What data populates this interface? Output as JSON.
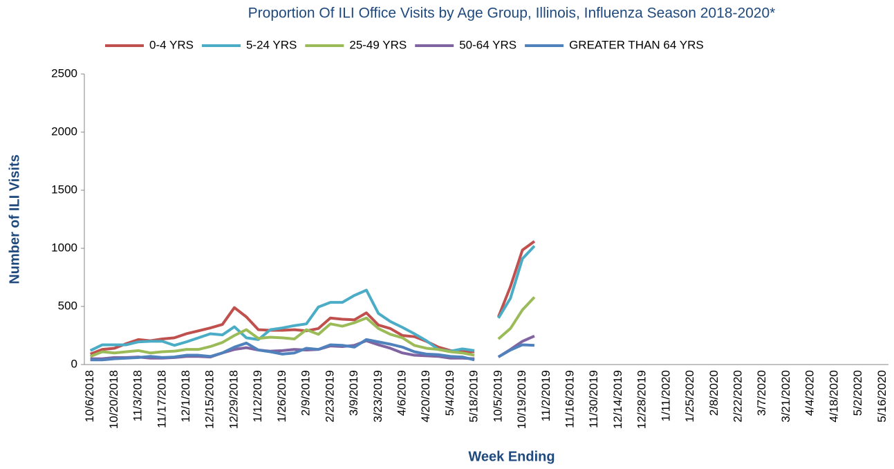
{
  "chart_data": {
    "type": "line",
    "title": "Proportion Of ILI Office Visits by Age Group, Illinois, Influenza Season 2018-2020*",
    "x_label": "Week Ending",
    "y_label": "Number of ILI Visits",
    "categories": [
      "10/6/2018",
      null,
      "10/20/2018",
      null,
      "11/3/2018",
      null,
      "11/17/2018",
      null,
      "12/1/2018",
      null,
      "12/15/2018",
      null,
      "12/29/2018",
      null,
      "1/12/2019",
      null,
      "1/26/2019",
      null,
      "2/9/2019",
      null,
      "2/23/2019",
      null,
      "3/9/2019",
      null,
      "3/23/2019",
      null,
      "4/6/2019",
      null,
      "4/20/2019",
      null,
      "5/4/2019",
      null,
      "5/18/2019",
      null,
      "10/5/2019",
      null,
      "10/19/2019",
      null,
      "11/2/2019",
      null,
      "11/16/2019",
      null,
      "11/30/2019",
      null,
      "12/14/2019",
      null,
      "12/28/2019",
      null,
      "1/11/2020",
      null,
      "1/25/2020",
      null,
      "2/8/2020",
      null,
      "2/22/2020",
      null,
      "3/7/2020",
      null,
      "3/21/2020",
      null,
      "4/4/2020",
      null,
      "4/18/2020",
      null,
      "5/2/2020",
      null,
      "5/16/2020"
    ],
    "series": [
      {
        "name": "0-4 YRS",
        "color": "#c0504d",
        "values": [
          90,
          130,
          140,
          180,
          215,
          205,
          220,
          230,
          265,
          290,
          315,
          345,
          490,
          410,
          300,
          295,
          295,
          300,
          290,
          310,
          400,
          390,
          385,
          445,
          340,
          310,
          250,
          240,
          200,
          150,
          120,
          110,
          110,
          null,
          410,
          670,
          985,
          1060,
          null,
          null,
          null,
          null,
          null,
          null,
          null,
          null,
          null,
          null,
          null,
          null,
          null,
          null,
          null,
          null,
          null,
          null,
          null,
          null,
          null,
          null,
          null,
          null,
          null,
          null,
          null,
          null,
          null
        ]
      },
      {
        "name": "5-24 YRS",
        "color": "#4bacc6",
        "values": [
          120,
          170,
          170,
          170,
          195,
          200,
          200,
          165,
          195,
          230,
          265,
          255,
          325,
          230,
          215,
          300,
          315,
          335,
          350,
          495,
          535,
          535,
          595,
          640,
          440,
          370,
          320,
          265,
          205,
          130,
          115,
          135,
          120,
          null,
          400,
          570,
          910,
          1020,
          null,
          null,
          null,
          null,
          null,
          null,
          null,
          null,
          null,
          null,
          null,
          null,
          null,
          null,
          null,
          null,
          null,
          null,
          null,
          null,
          null,
          null,
          null,
          null,
          null,
          null,
          null,
          null,
          null
        ]
      },
      {
        "name": "25-49 YRS",
        "color": "#9bbb59",
        "values": [
          70,
          110,
          100,
          110,
          120,
          100,
          110,
          115,
          130,
          130,
          155,
          190,
          250,
          300,
          225,
          235,
          230,
          220,
          300,
          260,
          350,
          330,
          360,
          400,
          310,
          260,
          230,
          165,
          140,
          130,
          110,
          100,
          80,
          null,
          220,
          310,
          470,
          580,
          null,
          null,
          null,
          null,
          null,
          null,
          null,
          null,
          null,
          null,
          null,
          null,
          null,
          null,
          null,
          null,
          null,
          null,
          null,
          null,
          null,
          null,
          null,
          null,
          null,
          null,
          null,
          null,
          null
        ]
      },
      {
        "name": "50-64 YRS",
        "color": "#8064a2",
        "values": [
          50,
          50,
          60,
          60,
          65,
          55,
          55,
          60,
          70,
          70,
          65,
          100,
          130,
          145,
          125,
          115,
          120,
          130,
          125,
          130,
          160,
          155,
          165,
          205,
          170,
          140,
          100,
          80,
          75,
          70,
          55,
          55,
          50,
          null,
          65,
          130,
          200,
          245,
          null,
          null,
          null,
          null,
          null,
          null,
          null,
          null,
          null,
          null,
          null,
          null,
          null,
          null,
          null,
          null,
          null,
          null,
          null,
          null,
          null,
          null,
          null,
          null,
          null,
          null,
          null,
          null,
          null
        ]
      },
      {
        "name": "GREATER THAN 64 YRS",
        "color": "#4f81bd",
        "values": [
          40,
          40,
          50,
          55,
          60,
          70,
          60,
          65,
          80,
          80,
          70,
          100,
          150,
          185,
          125,
          110,
          90,
          100,
          140,
          130,
          170,
          165,
          150,
          215,
          195,
          175,
          150,
          110,
          90,
          85,
          70,
          65,
          40,
          null,
          65,
          125,
          170,
          165,
          null,
          null,
          null,
          null,
          null,
          null,
          null,
          null,
          null,
          null,
          null,
          null,
          null,
          null,
          null,
          null,
          null,
          null,
          null,
          null,
          null,
          null,
          null,
          null,
          null,
          null,
          null,
          null,
          null
        ]
      }
    ],
    "ylim": [
      0,
      2500
    ],
    "yticks": [
      0,
      500,
      1000,
      1500,
      2000,
      2500
    ],
    "grid": false
  }
}
